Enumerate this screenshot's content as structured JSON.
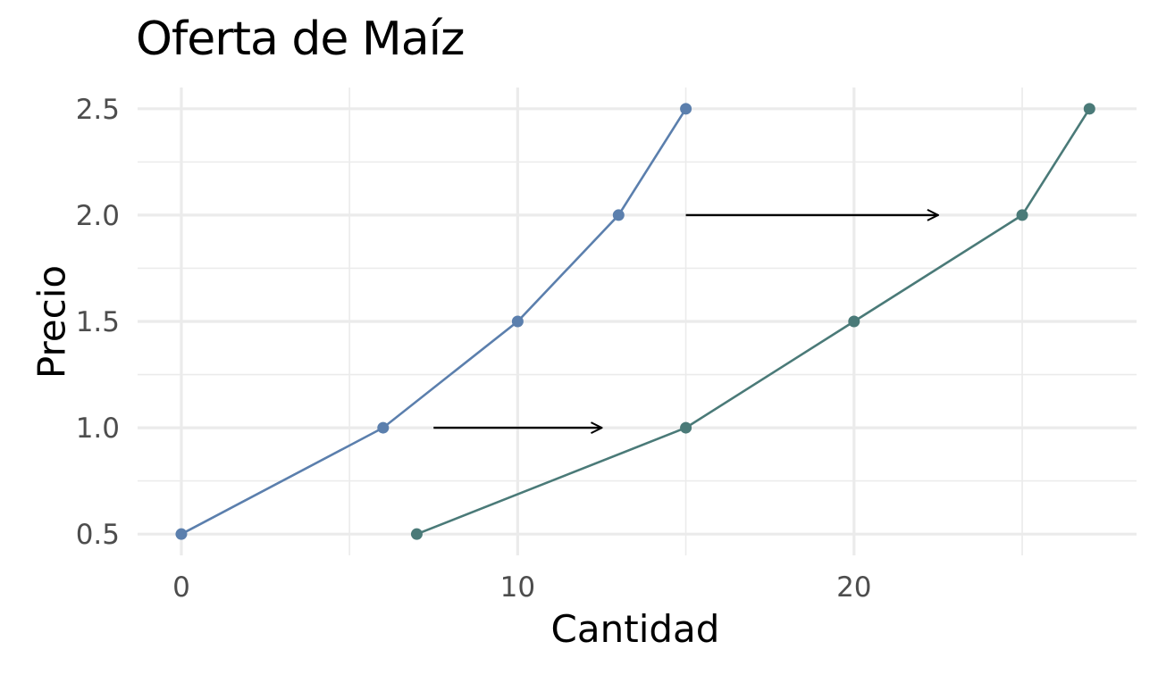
{
  "chart_data": {
    "type": "line",
    "title": "Oferta de Maíz",
    "xlabel": "Cantidad",
    "ylabel": "Precio",
    "xlim": [
      -1.3,
      28.4
    ],
    "ylim": [
      0.4,
      2.6
    ],
    "x_ticks": [
      0,
      10,
      20
    ],
    "x_tick_labels": [
      "0",
      "10",
      "20"
    ],
    "y_ticks": [
      0.5,
      1.0,
      1.5,
      2.0,
      2.5
    ],
    "y_tick_labels": [
      "0.5",
      "1.0",
      "1.5",
      "2.0",
      "2.5"
    ],
    "grid": true,
    "series": [
      {
        "color": "#5b7fad",
        "points": [
          [
            0,
            0.5
          ],
          [
            6,
            1.0
          ],
          [
            10,
            1.5
          ],
          [
            13,
            2.0
          ],
          [
            15,
            2.5
          ]
        ]
      },
      {
        "color": "#4a7a78",
        "points": [
          [
            7,
            0.5
          ],
          [
            15,
            1.0
          ],
          [
            20,
            1.5
          ],
          [
            25,
            2.0
          ],
          [
            27,
            2.5
          ]
        ]
      }
    ],
    "annotations": [
      {
        "type": "arrow",
        "from": [
          7.5,
          1.0
        ],
        "to": [
          12.5,
          1.0
        ],
        "color": "#000000"
      },
      {
        "type": "arrow",
        "from": [
          15,
          2.0
        ],
        "to": [
          22.5,
          2.0
        ],
        "color": "#000000"
      }
    ]
  }
}
